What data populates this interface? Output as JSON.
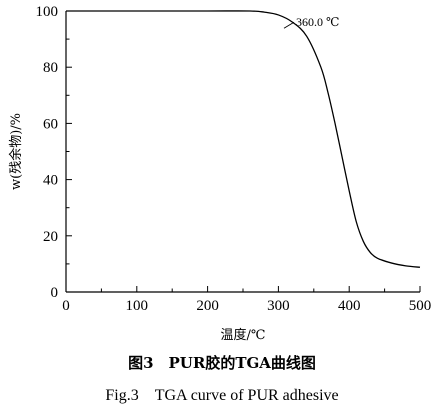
{
  "chart_data": {
    "type": "line",
    "xlabel": "温度/℃",
    "ylabel": "w(残余物)/%",
    "xlim": [
      0,
      500
    ],
    "ylim": [
      0,
      100
    ],
    "x_ticks": [
      "0",
      "100",
      "200",
      "300",
      "400",
      "500"
    ],
    "y_ticks": [
      "0",
      "20",
      "40",
      "60",
      "80",
      "100"
    ],
    "grid": false,
    "series": [
      {
        "x": [
          0,
          100,
          200,
          260,
          280,
          300,
          320,
          340,
          360,
          370,
          380,
          390,
          400,
          410,
          420,
          430,
          440,
          460,
          480,
          500
        ],
        "y": [
          100,
          100,
          100,
          100,
          99.6,
          98.6,
          96,
          91,
          80,
          71,
          60,
          48,
          36,
          25,
          18,
          14,
          12,
          10.3,
          9.3,
          8.8
        ]
      }
    ],
    "annotations": [
      {
        "text": "360.0 ℃",
        "x": 322,
        "y": 96
      }
    ]
  },
  "caption": {
    "cn": "图3　PUR胶的TGA曲线图",
    "en": "Fig.3　TGA curve of PUR adhesive"
  }
}
